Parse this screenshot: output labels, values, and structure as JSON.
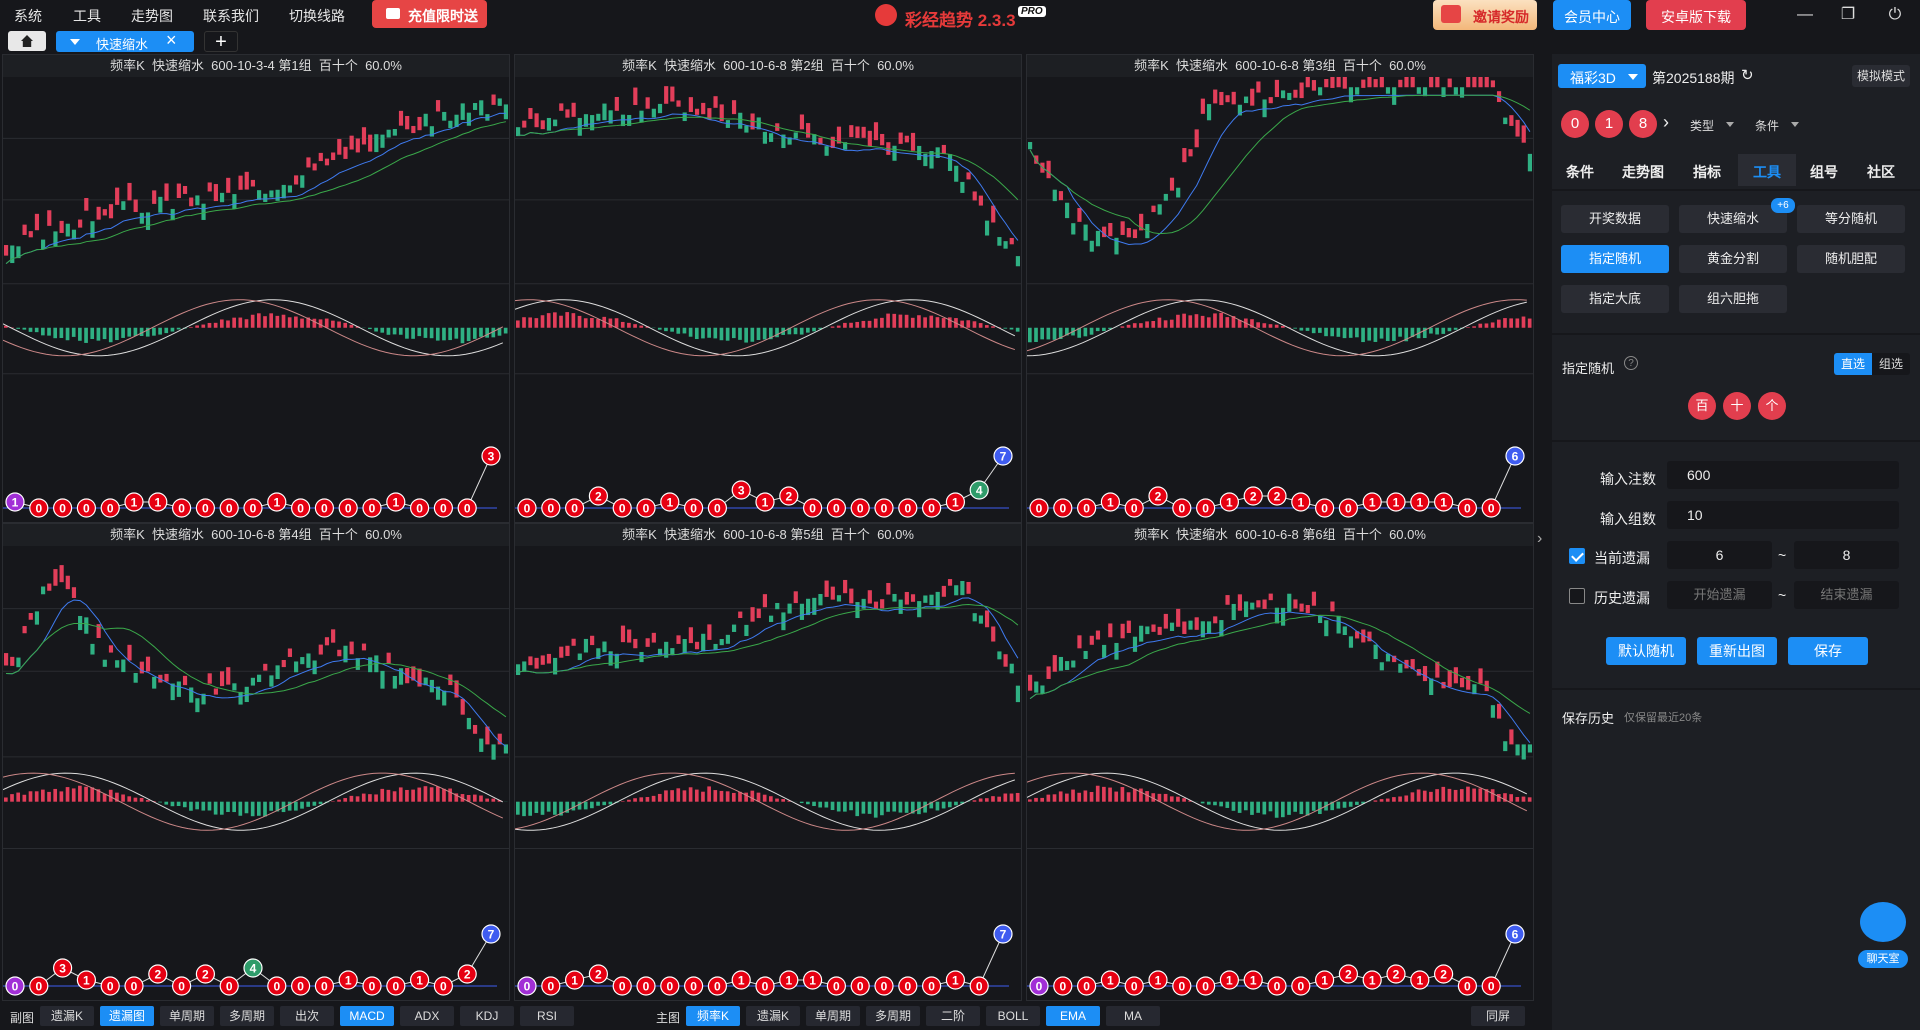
{
  "menu": [
    "系统",
    "工具",
    "走势图",
    "联系我们",
    "切换线路"
  ],
  "recharge_label": "充值限时送",
  "app_title": "彩经趋势 2.3.3",
  "pro_badge": "PRO",
  "invite_label": "邀请奖励",
  "member_label": "会员中心",
  "android_label": "安卓版下载",
  "tab_label": "快速缩水",
  "panels": [
    {
      "title": "频率K  快速缩水  600-10-3-4 第1组  百十个  60.0%",
      "seed": 3,
      "trend": "up"
    },
    {
      "title": "频率K  快速缩水  600-10-6-8 第2组  百十个  60.0%",
      "seed": 7,
      "trend": "updown"
    },
    {
      "title": "频率K  快速缩水  600-10-6-8 第3组  百十个  60.0%",
      "seed": 11,
      "trend": "vup"
    },
    {
      "title": "频率K  快速缩水  600-10-6-8 第4组  百十个  60.0%",
      "seed": 13,
      "trend": "peakdown"
    },
    {
      "title": "频率K  快速缩水  600-10-6-8 第5组  百十个  60.0%",
      "seed": 17,
      "trend": "up2"
    },
    {
      "title": "频率K  快速缩水  600-10-6-8 第6组  百十个  60.0%",
      "seed": 19,
      "trend": "hump"
    }
  ],
  "ball_rows": [
    [
      "1",
      "0",
      "0",
      "0",
      "0",
      "1",
      "1",
      "0",
      "0",
      "0",
      "0",
      "1",
      "0",
      "0",
      "0",
      "0",
      "1",
      "0",
      "0",
      "0",
      "3"
    ],
    [
      "0",
      "0",
      "0",
      "2",
      "0",
      "0",
      "1",
      "0",
      "0",
      "3",
      "1",
      "2",
      "0",
      "0",
      "0",
      "0",
      "0",
      "0",
      "1",
      "4",
      "7"
    ],
    [
      "0",
      "0",
      "0",
      "1",
      "0",
      "2",
      "0",
      "0",
      "1",
      "2",
      "2",
      "1",
      "0",
      "0",
      "1",
      "1",
      "1",
      "1",
      "0",
      "0",
      "6"
    ],
    [
      "0",
      "0",
      "3",
      "1",
      "0",
      "0",
      "2",
      "0",
      "2",
      "0",
      "4",
      "0",
      "0",
      "0",
      "1",
      "0",
      "0",
      "1",
      "0",
      "2",
      "7"
    ],
    [
      "0",
      "0",
      "1",
      "2",
      "0",
      "0",
      "0",
      "0",
      "0",
      "1",
      "0",
      "1",
      "1",
      "0",
      "0",
      "0",
      "0",
      "0",
      "1",
      "0",
      "7"
    ],
    [
      "0",
      "0",
      "0",
      "1",
      "0",
      "1",
      "0",
      "0",
      "1",
      "1",
      "0",
      "0",
      "1",
      "2",
      "1",
      "2",
      "1",
      "2",
      "0",
      "0",
      "6"
    ]
  ],
  "ball_colors": {
    "0": "#e60012",
    "1": "#e60012",
    "2": "#e60012",
    "3": "#e60012",
    "4": "#2e9c6a",
    "6": "#3f5cf0",
    "7": "#3f5cf0",
    "purple": "#a12fd6"
  },
  "bottom": {
    "sub_label": "副图",
    "sub_buttons": [
      "遗漏K",
      "遗漏图",
      "单周期",
      "多周期",
      "出次",
      "MACD",
      "ADX",
      "KDJ",
      "RSI"
    ],
    "main_label": "主图",
    "main_buttons": [
      "频率K",
      "遗漏K",
      "单周期",
      "多周期",
      "二阶",
      "BOLL",
      "EMA",
      "MA"
    ],
    "fullscreen": "同屏"
  },
  "sidebar": {
    "lottery": "福彩3D",
    "issue": "第2025188期",
    "mode_btn": "模拟模式",
    "balls": [
      "0",
      "1",
      "8"
    ],
    "type_select": "类型",
    "cond_select": "条件",
    "tabs": [
      "条件",
      "走势图",
      "指标",
      "工具",
      "组号",
      "社区"
    ],
    "tools": [
      "开奖数据",
      "快速缩水",
      "等分随机",
      "指定随机",
      "黄金分割",
      "随机胆配",
      "指定大底",
      "组六胆拖"
    ],
    "plus_badge": "+6",
    "section_title": "指定随机",
    "direct": "直选",
    "group": "组选",
    "pos": [
      "百",
      "十",
      "个"
    ],
    "bets_label": "输入注数",
    "bets_value": "600",
    "groups_label": "输入组数",
    "groups_value": "10",
    "current_label": "当前遗漏",
    "current_from": "6",
    "current_to": "8",
    "history_label": "历史遗漏",
    "history_from_ph": "开始遗漏",
    "history_to_ph": "结束遗漏",
    "tilde": "~",
    "btn_default": "默认随机",
    "btn_redraw": "重新出图",
    "btn_save": "保存",
    "history_title": "保存历史",
    "history_note": "仅保留最近20条",
    "chat": "聊天室"
  },
  "colors": {
    "accent": "#1c8ef5",
    "red": "#e23e4e",
    "green": "#2fb083",
    "bg": "#16171b"
  }
}
